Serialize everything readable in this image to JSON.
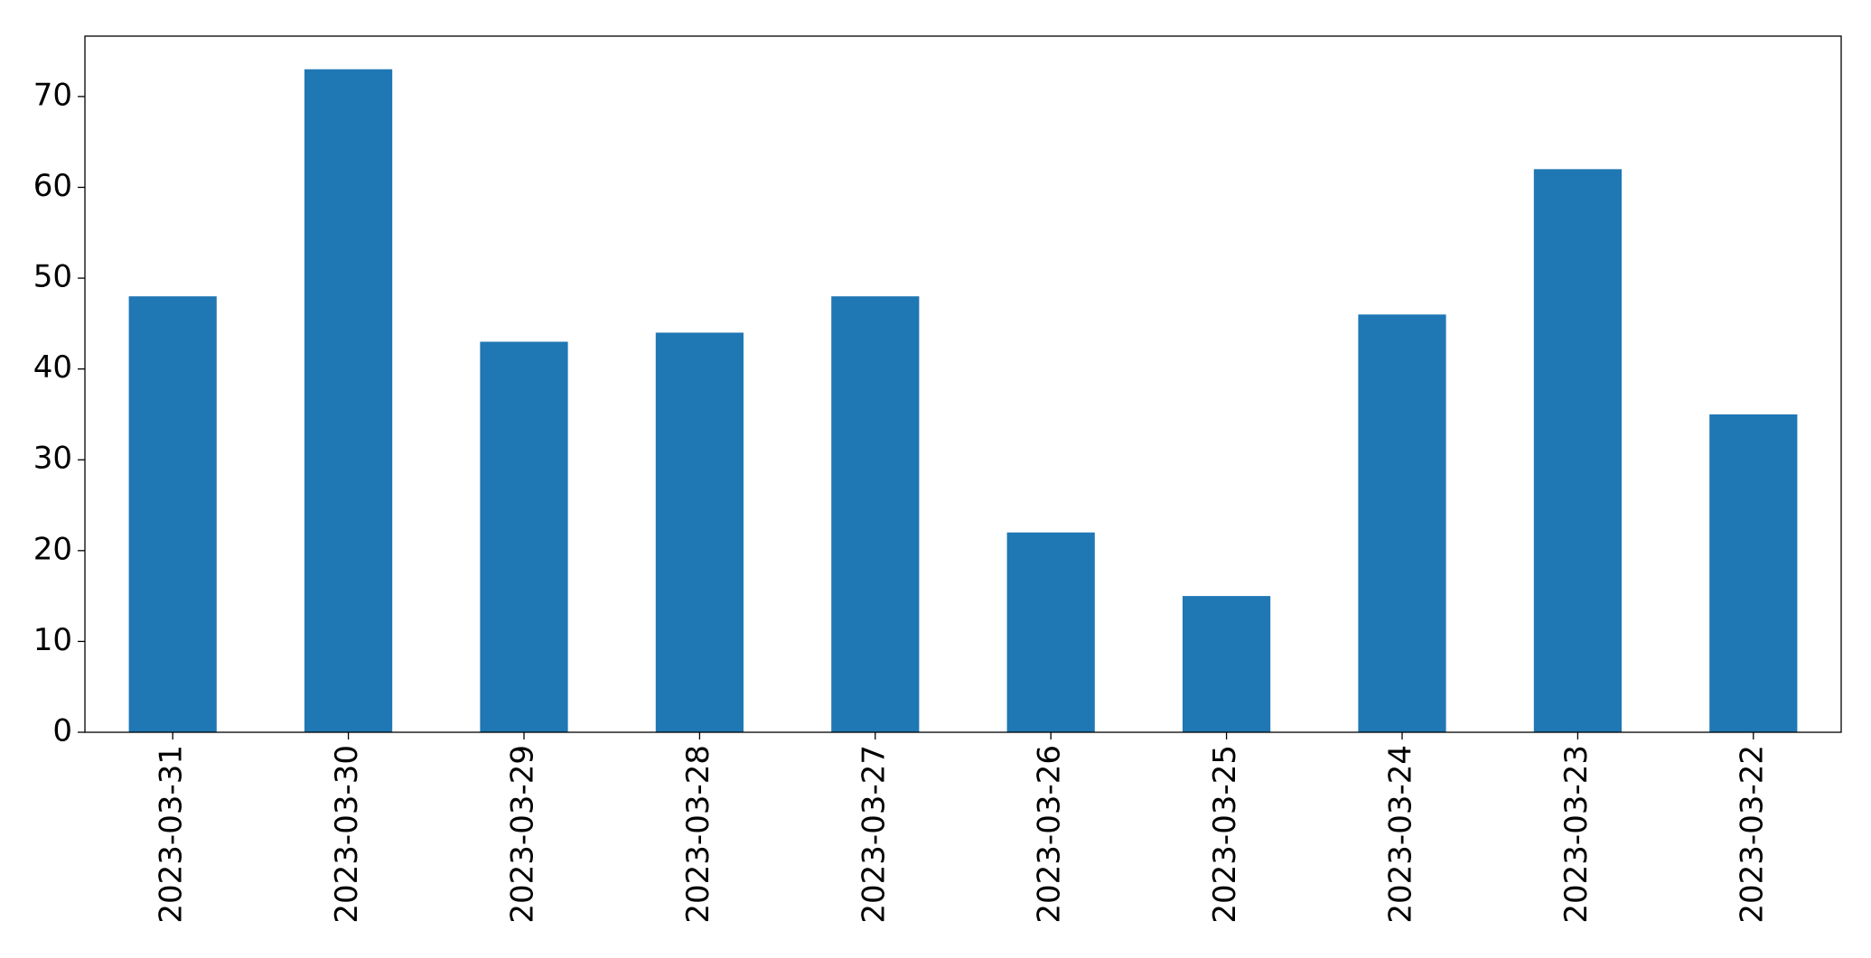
{
  "chart_data": {
    "type": "bar",
    "categories": [
      "2023-03-31",
      "2023-03-30",
      "2023-03-29",
      "2023-03-28",
      "2023-03-27",
      "2023-03-26",
      "2023-03-25",
      "2023-03-24",
      "2023-03-23",
      "2023-03-22"
    ],
    "values": [
      48,
      73,
      43,
      44,
      48,
      22,
      15,
      46,
      62,
      35
    ],
    "color": "#1f77b4",
    "ylim": [
      0,
      76.65
    ],
    "yticks": [
      0,
      10,
      20,
      30,
      40,
      50,
      60,
      70
    ],
    "grid": false
  }
}
